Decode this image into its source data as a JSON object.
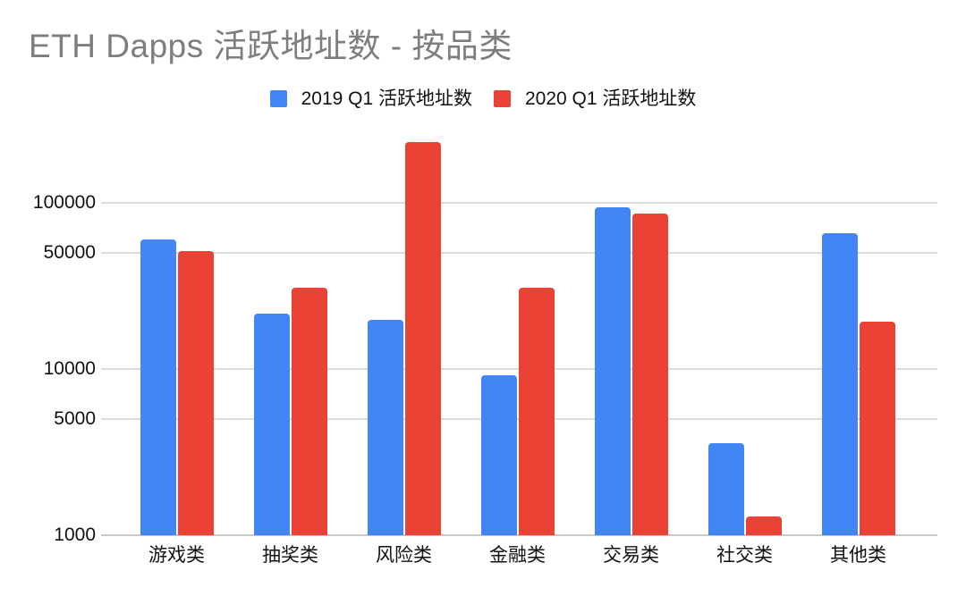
{
  "chart_data": {
    "type": "bar",
    "title": "ETH Dapps 活跃地址数 - 按品类",
    "categories": [
      "游戏类",
      "抽奖类",
      "风险类",
      "金融类",
      "交易类",
      "社交类",
      "其他类"
    ],
    "series": [
      {
        "name": "2019 Q1 活跃地址数",
        "color": "#4285F4",
        "values": [
          60000,
          21500,
          19800,
          9200,
          94000,
          3600,
          66000
        ]
      },
      {
        "name": "2020 Q1 活跃地址数",
        "color": "#EA4335",
        "values": [
          51000,
          31000,
          233000,
          31000,
          86000,
          1300,
          19300
        ]
      }
    ],
    "y_scale": "log",
    "y_ticks": [
      1000,
      5000,
      10000,
      50000,
      100000
    ],
    "y_baseline": 1000,
    "ylim": [
      1000,
      280000
    ],
    "grid": true,
    "legend_position": "top"
  },
  "colors": {
    "background": "#ffffff",
    "title_text": "#7e7e7e",
    "axis_text": "#111111",
    "gridline": "#dbdbdb",
    "baseline": "#c9c9c9"
  }
}
